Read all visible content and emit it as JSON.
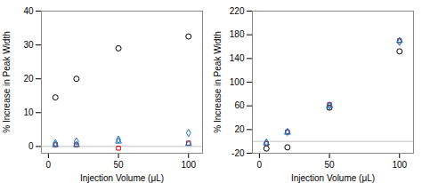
{
  "chart_data": [
    {
      "type": "scatter",
      "x": [
        5,
        20,
        50,
        100
      ],
      "series": [
        {
          "color": "#000000",
          "marker": "circle",
          "values": [
            14.5,
            20,
            29,
            32.5
          ]
        },
        {
          "color": "#cc0000",
          "marker": "square",
          "values": [
            0.5,
            0.5,
            -0.5,
            1.0
          ]
        },
        {
          "color": "#1f6fbe",
          "marker": "diamond",
          "values": [
            1.0,
            1.5,
            2.0,
            4.0
          ]
        },
        {
          "color": "#1f6fbe",
          "marker": "triangle",
          "values": [
            0.5,
            0.5,
            1.5,
            0.8
          ]
        }
      ],
      "hline": 0,
      "xlim": [
        -5,
        110
      ],
      "xticks": [
        0,
        50,
        100
      ],
      "ylim": [
        -2,
        40
      ],
      "yticks": [
        0,
        10,
        20,
        30,
        40
      ],
      "xlabel": "Injection Volume (μL)",
      "ylabel": "% Increase in Peak Width",
      "grid": false
    },
    {
      "type": "scatter",
      "x": [
        5,
        20,
        50,
        100
      ],
      "series": [
        {
          "color": "#000000",
          "marker": "circle",
          "values": [
            -12,
            -10,
            57,
            152
          ]
        },
        {
          "color": "#cc0000",
          "marker": "square",
          "values": [
            -4,
            16,
            62,
            170
          ]
        },
        {
          "color": "#1f6fbe",
          "marker": "diamond",
          "values": [
            -2,
            16,
            60,
            168
          ]
        },
        {
          "color": "#1f6fbe",
          "marker": "triangle",
          "values": [
            -3,
            15,
            61,
            170
          ]
        }
      ],
      "hline": 0,
      "xlim": [
        -5,
        110
      ],
      "xticks": [
        0,
        50,
        100
      ],
      "ylim": [
        -20,
        220
      ],
      "yticks": [
        -20,
        20,
        60,
        100,
        140,
        180,
        220
      ],
      "xlabel": "Injection Volume (μL)",
      "ylabel": "% Increase in Peak Width",
      "grid": false
    }
  ]
}
